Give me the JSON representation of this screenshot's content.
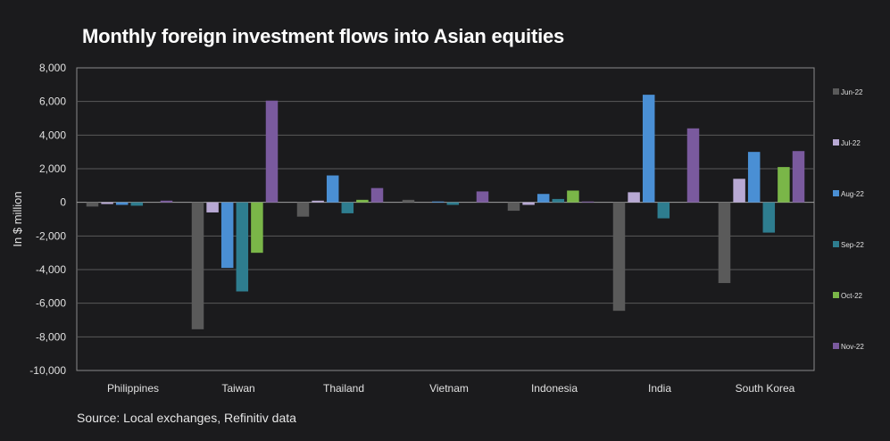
{
  "chart_data": {
    "type": "bar",
    "title": "Monthly foreign investment flows into Asian equities",
    "ylabel": "In $ million",
    "xlabel": "",
    "ylim": [
      -10000,
      8000
    ],
    "yticks": [
      8000,
      6000,
      4000,
      2000,
      0,
      -2000,
      -4000,
      -6000,
      -8000,
      -10000
    ],
    "ytick_labels": [
      "8,000",
      "6,000",
      "4,000",
      "2,000",
      "0",
      "-2,000",
      "-4,000",
      "-6,000",
      "-8,000",
      "-10,000"
    ],
    "categories": [
      "Philippines",
      "Taiwan",
      "Thailand",
      "Vietnam",
      "Indonesia",
      "India",
      "South Korea"
    ],
    "grid": true,
    "legend_position": "right",
    "series": [
      {
        "name": "Jun-22",
        "color": "#5a5a5a",
        "values": [
          -250,
          -7550,
          -850,
          150,
          -500,
          -6450,
          -4800
        ]
      },
      {
        "name": "Jul-22",
        "color": "#b8a9d4",
        "values": [
          -100,
          -600,
          100,
          0,
          -150,
          600,
          1400
        ]
      },
      {
        "name": "Aug-22",
        "color": "#4a8fd4",
        "values": [
          -150,
          -3900,
          1600,
          50,
          500,
          6400,
          3000
        ]
      },
      {
        "name": "Sep-22",
        "color": "#2e7d8f",
        "values": [
          -200,
          -5300,
          -650,
          -150,
          200,
          -950,
          -1800
        ]
      },
      {
        "name": "Oct-22",
        "color": "#7ab648",
        "values": [
          0,
          -3000,
          150,
          0,
          700,
          0,
          2100
        ]
      },
      {
        "name": "Nov-22",
        "color": "#7a5a9e",
        "values": [
          100,
          6050,
          850,
          650,
          50,
          4400,
          3050
        ]
      }
    ]
  },
  "source": "Source: Local exchanges, Refinitiv data"
}
